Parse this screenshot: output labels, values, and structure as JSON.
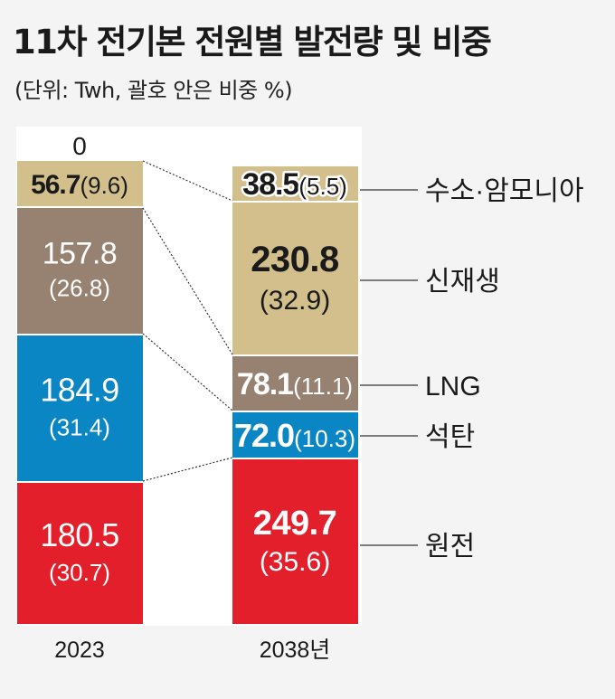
{
  "header": {
    "title": "11차 전기본 전원별 발전량 및 비중",
    "subtitle": "(단위: Twh, 괄호 안은 비중 %)"
  },
  "colors": {
    "hydrogen": "#d2bf8c",
    "renewable": "#d2bf8c",
    "coal_brown": "#978171",
    "lng_blue": "#0b86c5",
    "nuclear": "#e41f2c",
    "background": "#f4f4f4"
  },
  "chart_data": {
    "type": "bar",
    "stacked": true,
    "title": "11차 전기본 전원별 발전량 및 비중",
    "subtitle": "(단위: Twh, 괄호 안은 비중 %)",
    "categories": [
      "2023",
      "2038년"
    ],
    "bars": [
      {
        "category": "2023",
        "segments": [
          {
            "value": "180.5",
            "share": "(30.7)",
            "color": "#e41f2c"
          },
          {
            "value": "184.9",
            "share": "(31.4)",
            "color": "#0b86c5"
          },
          {
            "value": "157.8",
            "share": "(26.8)",
            "color": "#978171"
          },
          {
            "value": "56.7",
            "share": "(9.6)",
            "color": "#d2bf8c"
          },
          {
            "value": "0",
            "share": "",
            "color": "#d2bf8c"
          }
        ]
      },
      {
        "category": "2038년",
        "segments": [
          {
            "value": "249.7",
            "share": "(35.6)",
            "color": "#e41f2c"
          },
          {
            "value": "72.0",
            "share": "(10.3)",
            "color": "#0b86c5"
          },
          {
            "value": "78.1",
            "share": "(11.1)",
            "color": "#978171"
          },
          {
            "value": "230.8",
            "share": "(32.9)",
            "color": "#d2bf8c"
          },
          {
            "value": "38.5",
            "share": "(5.5)",
            "color": "#d2bf8c"
          }
        ]
      }
    ],
    "legend": [
      "수소·암모니아",
      "신재생",
      "LNG",
      "석탄",
      "원전"
    ]
  }
}
